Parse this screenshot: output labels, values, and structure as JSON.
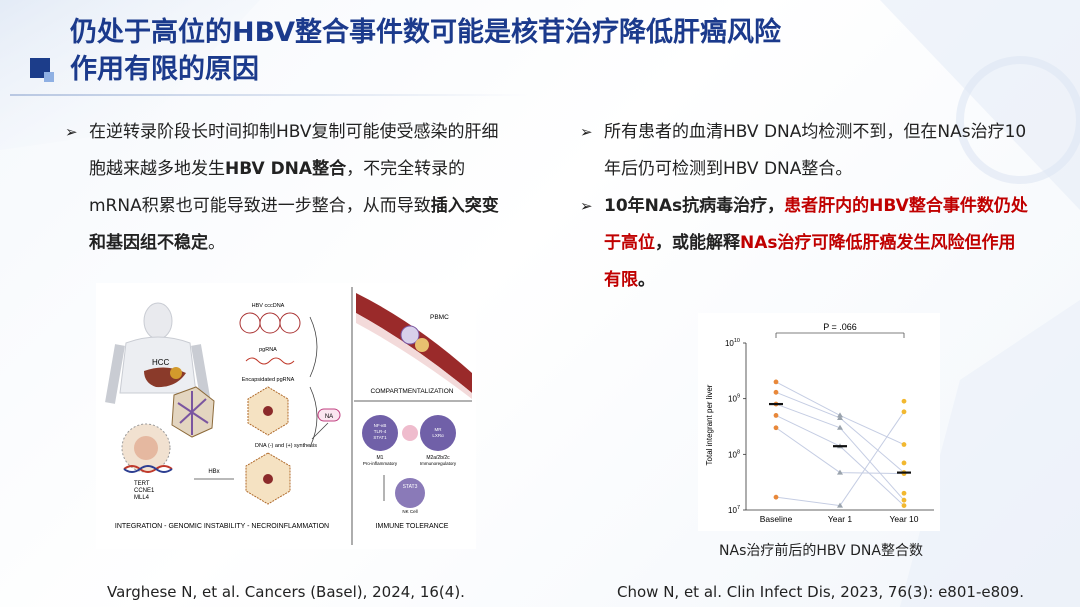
{
  "title": {
    "line1": "仍处于高位的HBV整合事件数可能是核苷治疗降低肝癌风险",
    "line2": "作用有限的原因"
  },
  "left_bullet": {
    "p1": "在逆转录阶段长时间抑制HBV复制可能使受感染的肝细胞越来越多地发生",
    "p1_bold": "HBV  DNA整合",
    "p2": "，不完全转录的mRNA积累也可能导致进一步整合，从而导致",
    "p2_bold": "插入突变和基因组不稳定",
    "p3": "。"
  },
  "right_bullets": {
    "b1": "所有患者的血清HBV  DNA均检测不到，但在NAs治疗10年后仍可检测到HBV DNA整合。",
    "b2_bold1": "10年NAs抗病毒治疗，",
    "b2_red1": "患者肝内的HBV整合事件数仍处于高位",
    "b2_bold2": "，或能解释",
    "b2_red2": "NAs治疗可降低肝癌发生风险但作用有限",
    "b2_end": "。"
  },
  "figure_left": {
    "hcc": "HCC",
    "cccdna": "HBV cccDNA",
    "pgrna": "pgRNA",
    "encaps": "Encapsidated pgRNA",
    "dna_synth": "DNA (-) and (+) synthesis",
    "na": "NA",
    "hbx": "HBx",
    "genes": [
      "TERT",
      "CCNE1",
      "MLL4"
    ],
    "pbmc": "PBMC",
    "compartment": "COMPARTMENTALIZATION",
    "m1_markers": [
      "NF-κB",
      "TLR-4",
      "STAT1"
    ],
    "m1": "M1",
    "m1_sub": "Pro-inflammatory",
    "m2_markers": [
      "MR",
      "LXRα"
    ],
    "m2": "M2a/2b/2c",
    "m2_sub": "Immunoregulatory",
    "stat3": "STAT3",
    "nk": "NK Cell",
    "integration": "INTEGRATION - GENOMIC INSTABILITY - NECROINFLAMMATION",
    "tolerance": "IMMUNE TOLERANCE"
  },
  "chart_data": {
    "type": "scatter",
    "title": "",
    "ylabel": "Total integrant per liver",
    "yscale": "log",
    "ylim": [
      10000000,
      10000000000
    ],
    "ytick_exponents": [
      7,
      8,
      9,
      10
    ],
    "categories": [
      "Baseline",
      "Year 1",
      "Year 10"
    ],
    "annotation": "P = .066",
    "colors": {
      "Baseline": "#e8883a",
      "Year 1": "#9aa3ad",
      "Year 10": "#f2b830",
      "line": "#c5cde3"
    },
    "medians": [
      800000000.0,
      140000000.0,
      47000000.0
    ],
    "patients": [
      [
        2000000000.0,
        500000000.0,
        150000000.0
      ],
      [
        1300000000.0,
        450000000.0,
        47000000.0
      ],
      [
        800000000.0,
        300000000.0,
        15000000.0
      ],
      [
        500000000.0,
        140000000.0,
        12000000.0
      ],
      [
        300000000.0,
        47000000.0,
        45000000.0
      ],
      [
        17000000.0,
        12000000.0,
        580000000.0
      ]
    ],
    "extra_points": {
      "Year 10": [
        900000000.0,
        70000000.0,
        20000000.0
      ]
    }
  },
  "chart_caption": "NAs治疗前后的HBV DNA整合数",
  "refs": {
    "left": "Varghese N, et al. Cancers (Basel), 2024, 16(4).",
    "right": "Chow N, et al. Clin Infect Dis, 2023, 76(3): e801-e809."
  }
}
